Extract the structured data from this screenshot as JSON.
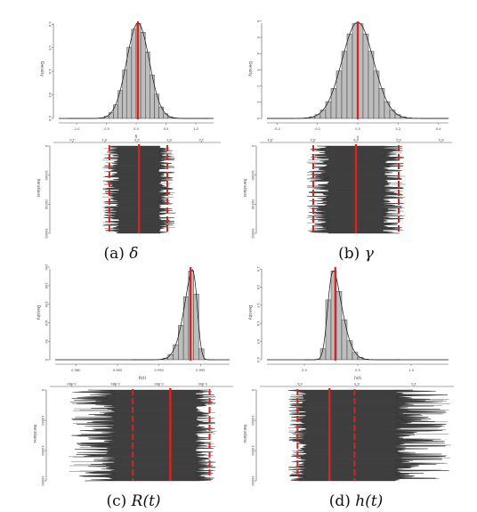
{
  "chart_data": [
    {
      "id": "a",
      "type": "histogram+trace",
      "caption_prefix": "(a) ",
      "caption_symbol": "δ",
      "caption_suffix": "",
      "hist": {
        "xlabel": "δ",
        "ylabel": "Density",
        "xticks": [
          "-1.0",
          "-0.5",
          "0.0",
          "0.5",
          "1.0"
        ],
        "xlim": [
          -1.3,
          1.3
        ],
        "yticks": [
          "0.0",
          "0.5",
          "1.0",
          "1.5",
          "2.0"
        ],
        "ylim": [
          0,
          2.1
        ],
        "center": 0.03,
        "sd": 0.19,
        "skew": 0,
        "peak": 2.02,
        "mean_line": 0.03
      },
      "trace": {
        "ylabel": "Iterations",
        "xticks": [
          "-1.0",
          "-0.5",
          "0.0",
          "0.5",
          "1.0"
        ],
        "yticks": [
          "0",
          "10000",
          "20000",
          "30000"
        ],
        "ylim": [
          0,
          30000
        ],
        "mean_line": 0.03,
        "ci_lines": [
          -0.43,
          0.47
        ],
        "half_width": 0.56
      }
    },
    {
      "id": "b",
      "type": "histogram+trace",
      "caption_prefix": "(b) ",
      "caption_symbol": "γ",
      "caption_suffix": "",
      "hist": {
        "xlabel": "γ",
        "ylabel": "Density",
        "xticks": [
          "-0.4",
          "-0.2",
          "0.0",
          "0.2",
          "0.4"
        ],
        "xlim": [
          -0.45,
          0.45
        ],
        "yticks": [
          "0",
          "1",
          "2",
          "3",
          "4",
          "5",
          "6"
        ],
        "ylim": [
          0,
          6.1
        ],
        "center": 0.0,
        "sd": 0.078,
        "skew": 0,
        "peak": 5.85,
        "mean_line": 0.0
      },
      "trace": {
        "ylabel": "Iterations",
        "xticks": [
          "-0.4",
          "-0.2",
          "0.0",
          "0.2",
          "0.4"
        ],
        "yticks": [
          "0",
          "10000",
          "20000",
          "30000"
        ],
        "ylim": [
          0,
          30000
        ],
        "mean_line": 0.0,
        "ci_lines": [
          -0.2,
          0.2
        ],
        "half_width": 0.23
      }
    },
    {
      "id": "c",
      "type": "histogram+trace",
      "caption_prefix": "(c) ",
      "caption_symbol": "R",
      "caption_suffix": "(t)",
      "hist": {
        "xlabel": "R(t)",
        "ylabel": "Density",
        "xticks": [
          "0.980",
          "0.985",
          "0.990",
          "0.995"
        ],
        "xlim": [
          0.9775,
          0.9985
        ],
        "yticks": [
          "0",
          "50",
          "100",
          "150",
          "200",
          "250"
        ],
        "ylim": [
          0,
          255
        ],
        "center": 0.9946,
        "sd": 0.0013,
        "skew": -3.2,
        "peak": 240,
        "mean_line": 0.9938
      },
      "trace": {
        "ylabel": "Iterations",
        "xticks": [
          "0.980",
          "0.985",
          "0.990",
          "0.995"
        ],
        "xlim": [
          0.9775,
          0.9985
        ],
        "yticks": [
          "0",
          "10000",
          "20000",
          "30000"
        ],
        "ylim": [
          0,
          30000
        ],
        "mean_line": 0.9913,
        "ci_lines": [
          0.987,
          0.9958
        ],
        "center": 0.9913,
        "half_width_left": 0.0115,
        "half_width_right": 0.0052
      }
    },
    {
      "id": "d",
      "type": "histogram+trace",
      "caption_prefix": "(d) ",
      "caption_symbol": "h",
      "caption_suffix": "(t)",
      "hist": {
        "xlabel": "h(t)",
        "ylabel": "Density",
        "xticks": [
          "0.0",
          "0.5",
          "1.0"
        ],
        "xlim": [
          -0.35,
          1.35
        ],
        "yticks": [
          "0.0",
          "0.5",
          "1.0",
          "1.5",
          "2.0",
          "2.5"
        ],
        "ylim": [
          0,
          2.6
        ],
        "center": 0.22,
        "sd": 0.11,
        "skew": 3.0,
        "peak": 2.45,
        "mean_line": 0.29
      },
      "trace": {
        "ylabel": "Iterations",
        "xticks": [
          "0.0",
          "0.5",
          "1.0"
        ],
        "xlim": [
          -0.35,
          1.35
        ],
        "yticks": [
          "0",
          "10000",
          "20000",
          "30000"
        ],
        "ylim": [
          0,
          30000
        ],
        "mean_line": 0.26,
        "ci_lines": [
          -0.02,
          0.48
        ],
        "center": 0.26,
        "half_width_left": 0.36,
        "half_width_right": 1.05
      }
    }
  ]
}
